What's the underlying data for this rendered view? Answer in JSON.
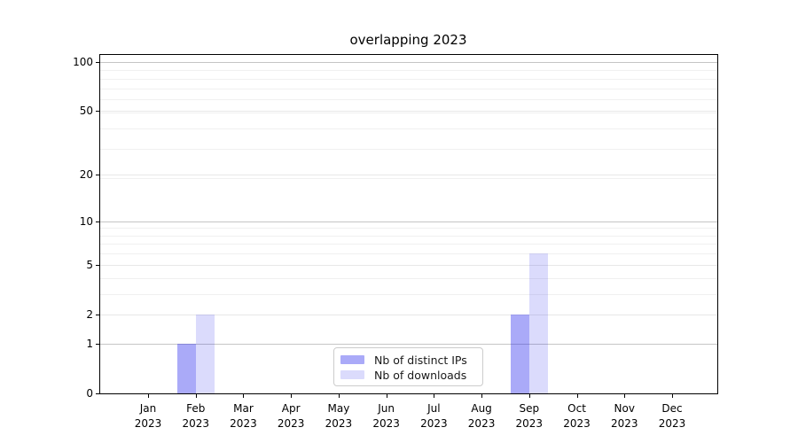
{
  "figure": {
    "title": "overlapping 2023",
    "background_color": "#ffffff",
    "spine_color": "#000000"
  },
  "chart_data": {
    "type": "bar",
    "title": "overlapping 2023",
    "categories": [
      "Jan",
      "Feb",
      "Mar",
      "Apr",
      "May",
      "Jun",
      "Jul",
      "Aug",
      "Sep",
      "Oct",
      "Nov",
      "Dec"
    ],
    "x_tick_second_line": "2023",
    "series": [
      {
        "name": "Nb of distinct IPs",
        "color": "rgba(42,42,238,0.40)",
        "values": [
          0,
          1,
          0,
          0,
          0,
          0,
          0,
          0,
          2,
          0,
          0,
          0
        ]
      },
      {
        "name": "Nb of downloads",
        "color": "rgba(42,42,238,0.17)",
        "values": [
          0,
          2,
          0,
          0,
          0,
          0,
          0,
          0,
          6,
          0,
          0,
          0
        ]
      }
    ],
    "xlabel": "",
    "ylabel": "",
    "ylim": [
      0,
      100
    ],
    "y_scale": "log10(1+y)",
    "y_major_ticks": [
      0,
      1,
      2,
      5,
      10,
      20,
      50,
      100
    ],
    "y_strong_gridlines": [
      1,
      10,
      100
    ],
    "y_light_gridlines": [
      2,
      5,
      20,
      50
    ],
    "y_minor_gridlines": [
      3,
      4,
      6,
      7,
      8,
      9,
      19,
      29,
      39,
      49,
      59,
      69,
      79,
      89
    ],
    "grid": {
      "strong_color": "#c5c5c5",
      "light_color": "#e7e7e7",
      "minor_color": "#f0f0f0"
    },
    "legend": {
      "position": "bottom-center",
      "entries": [
        "Nb of distinct IPs",
        "Nb of downloads"
      ]
    }
  }
}
